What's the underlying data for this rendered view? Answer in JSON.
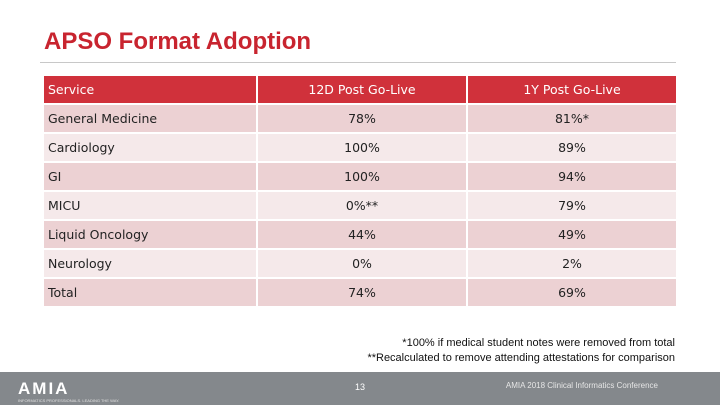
{
  "slide": {
    "title": "APSO Format Adoption"
  },
  "table": {
    "headers": [
      "Service",
      "12D Post Go-Live",
      "1Y Post Go-Live"
    ],
    "rows": [
      [
        "General Medicine",
        "78%",
        "81%*"
      ],
      [
        "Cardiology",
        "100%",
        "89%"
      ],
      [
        "GI",
        "100%",
        "94%"
      ],
      [
        "MICU",
        "0%**",
        "79%"
      ],
      [
        "Liquid Oncology",
        "44%",
        "49%"
      ],
      [
        "Neurology",
        "0%",
        "2%"
      ],
      [
        "Total",
        "74%",
        "69%"
      ]
    ]
  },
  "footnotes": [
    "*100% if medical student notes were removed from total",
    "**Recalculated to remove attending attestations for comparison"
  ],
  "footer": {
    "logo_text": "AMIA",
    "logo_subtext": "INFORMATICS PROFESSIONALS. LEADING THE WAY.",
    "page_number": "13",
    "conference": "AMIA 2018 Clinical Informatics Conference"
  },
  "colors": {
    "accent": "#c8242f",
    "header_bg": "#d0313b",
    "row_odd": "#ecd1d3",
    "row_even": "#f5e9ea",
    "footer_bg": "#84888c"
  }
}
